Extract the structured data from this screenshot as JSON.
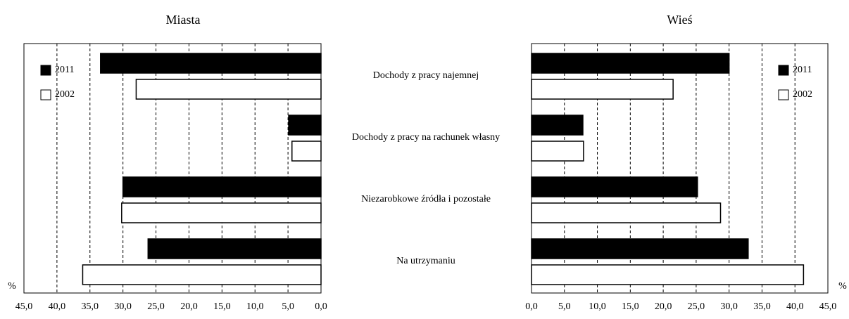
{
  "chart_data": [
    {
      "type": "bar",
      "orientation": "horizontal",
      "title": "Miasta",
      "xlabel": "%",
      "categories": [
        "Dochody z pracy najemnej",
        "Dochody z pracy na rachunek własny",
        "Niezarobkowe źródła i pozostałe",
        "Na utrzymaniu"
      ],
      "series": [
        {
          "name": "2011",
          "color": "#000000",
          "values": [
            33.4,
            4.9,
            30.0,
            26.2
          ]
        },
        {
          "name": "2002",
          "color": "#ffffff",
          "values": [
            28.0,
            4.4,
            30.2,
            36.1
          ]
        }
      ],
      "xlim": [
        45,
        0
      ],
      "xticks": [
        {
          "value": 45,
          "label": "45,0"
        },
        {
          "value": 40,
          "label": "40,0"
        },
        {
          "value": 35,
          "label": "35,0"
        },
        {
          "value": 30,
          "label": "30,0"
        },
        {
          "value": 25,
          "label": "25,0"
        },
        {
          "value": 20,
          "label": "20,0"
        },
        {
          "value": 15,
          "label": "15,0"
        },
        {
          "value": 10,
          "label": "10,0"
        },
        {
          "value": 5,
          "label": "5,0"
        },
        {
          "value": 0,
          "label": "0,0"
        }
      ],
      "grid": true,
      "legend": "upper left"
    },
    {
      "type": "bar",
      "orientation": "horizontal",
      "title": "Wieś",
      "xlabel": "%",
      "series": [
        {
          "name": "2011",
          "color": "#000000",
          "values": [
            30.0,
            7.8,
            25.2,
            32.9
          ]
        },
        {
          "name": "2002",
          "color": "#ffffff",
          "values": [
            21.5,
            7.9,
            28.7,
            41.3
          ]
        }
      ],
      "xlim": [
        0,
        45
      ],
      "xticks": [
        {
          "value": 0,
          "label": "0,0"
        },
        {
          "value": 5,
          "label": "5,0"
        },
        {
          "value": 10,
          "label": "10,0"
        },
        {
          "value": 15,
          "label": "15,0"
        },
        {
          "value": 20,
          "label": "20,0"
        },
        {
          "value": 25,
          "label": "25,0"
        },
        {
          "value": 30,
          "label": "30,0"
        },
        {
          "value": 35,
          "label": "35,0"
        },
        {
          "value": 40,
          "label": "40,0"
        },
        {
          "value": 45,
          "label": "45,0"
        }
      ],
      "grid": true,
      "legend": "upper right"
    }
  ]
}
